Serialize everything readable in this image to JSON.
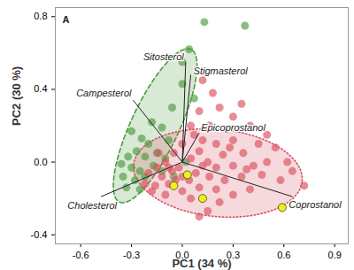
{
  "chart_data": {
    "type": "scatter",
    "x_label": "PC1 (34 %)",
    "y_label": "PC2 (30 %)",
    "annotations": [
      {
        "text": "A"
      }
    ],
    "xlim": [
      -0.75,
      0.98
    ],
    "ylim": [
      -0.45,
      0.85
    ],
    "xticks": [
      -0.6,
      -0.3,
      {
        "value": 0,
        "label": "0.0"
      },
      0.3,
      0.6,
      0.9
    ],
    "yticks": [
      -0.4,
      {
        "value": 0,
        "label": "0.0"
      },
      0.4,
      0.8
    ],
    "series": [
      {
        "color": "#4e9a3f",
        "marker": "circle",
        "x": [
          0.13,
          0.37,
          0.04,
          0.0,
          0.0,
          0.07,
          -0.06,
          -0.18,
          -0.12,
          -0.3,
          -0.24,
          -0.2,
          -0.08,
          -0.27,
          -0.32,
          -0.22,
          -0.15,
          -0.36,
          -0.3,
          -0.25,
          -0.35,
          -0.28,
          -0.22,
          -0.17,
          -0.12,
          -0.33,
          -0.25,
          0.02,
          -0.1,
          -0.05
        ],
        "y": [
          0.77,
          0.75,
          0.62,
          0.55,
          0.43,
          0.35,
          0.3,
          0.22,
          0.19,
          0.17,
          0.13,
          0.1,
          0.12,
          0.06,
          0.03,
          0.03,
          0.05,
          -0.01,
          -0.03,
          -0.05,
          -0.08,
          -0.1,
          -0.08,
          -0.02,
          -0.05,
          -0.14,
          -0.15,
          0.0,
          0.02,
          -0.08
        ]
      },
      {
        "color": "#d8505e",
        "marker": "circle",
        "x": [
          0.12,
          0.18,
          0.1,
          0.22,
          0.3,
          0.05,
          0.16,
          0.26,
          0.4,
          0.12,
          0.2,
          0.3,
          0.45,
          0.55,
          0.36,
          0.24,
          0.1,
          0.62,
          0.5,
          0.42,
          0.3,
          0.2,
          0.12,
          0.05,
          -0.05,
          -0.1,
          -0.15,
          -0.2,
          -0.12,
          -0.06,
          0.0,
          0.08,
          0.16,
          0.25,
          0.35,
          0.47,
          0.58,
          0.72,
          0.4,
          0.3,
          0.2,
          0.1,
          0.0,
          -0.08,
          -0.16,
          -0.22,
          -0.1,
          0.05,
          0.22,
          0.15,
          -0.02,
          -0.04,
          0.04,
          -0.08,
          -0.14,
          0.0,
          0.07,
          0.35,
          0.5,
          0.65,
          0.28,
          0.1,
          -0.18,
          0.15,
          0.38
        ],
        "y": [
          0.45,
          0.38,
          0.28,
          0.3,
          0.25,
          0.2,
          0.2,
          0.18,
          0.2,
          0.12,
          0.1,
          0.12,
          0.1,
          0.08,
          0.05,
          0.04,
          0.06,
          0.0,
          0.0,
          -0.02,
          -0.02,
          -0.03,
          -0.02,
          0.02,
          0.05,
          0.0,
          -0.03,
          -0.06,
          -0.08,
          -0.05,
          -0.08,
          -0.06,
          -0.08,
          -0.1,
          -0.08,
          -0.07,
          -0.1,
          -0.13,
          -0.15,
          -0.18,
          -0.15,
          -0.14,
          -0.16,
          -0.12,
          -0.13,
          -0.12,
          -0.18,
          -0.2,
          -0.22,
          -0.27,
          -0.03,
          -0.1,
          -0.1,
          -0.03,
          0.05,
          0.1,
          0.15,
          0.32,
          0.15,
          -0.05,
          0.08,
          -0.3,
          -0.16,
          0.0,
          -0.04
        ]
      },
      {
        "color": "#eef020",
        "marker": "circle",
        "x": [
          0.03,
          -0.05,
          0.12,
          0.59
        ],
        "y": [
          -0.07,
          -0.13,
          -0.2,
          -0.25
        ]
      }
    ],
    "ellipses": [
      {
        "color": "#4e9a3f",
        "line_style": "dashed",
        "center": [
          -0.16,
          0.2
        ],
        "semi_axes": [
          0.47,
          0.14
        ],
        "angle": 63
      },
      {
        "color": "#d8505e",
        "line_style": "dotted",
        "center": [
          0.21,
          -0.06
        ],
        "semi_axes": [
          0.5,
          0.24
        ],
        "angle": -5
      }
    ],
    "loadings": {
      "names": [
        "Sitosterol",
        "Stigmasterol",
        "Campesterol",
        "Epicoprostanol",
        "Cholesterol",
        "Coprostanol"
      ],
      "x": [
        0.02,
        0.05,
        -0.29,
        0.1,
        -0.48,
        0.65
      ],
      "y": [
        0.55,
        0.48,
        0.34,
        0.16,
        -0.19,
        -0.19
      ]
    }
  }
}
